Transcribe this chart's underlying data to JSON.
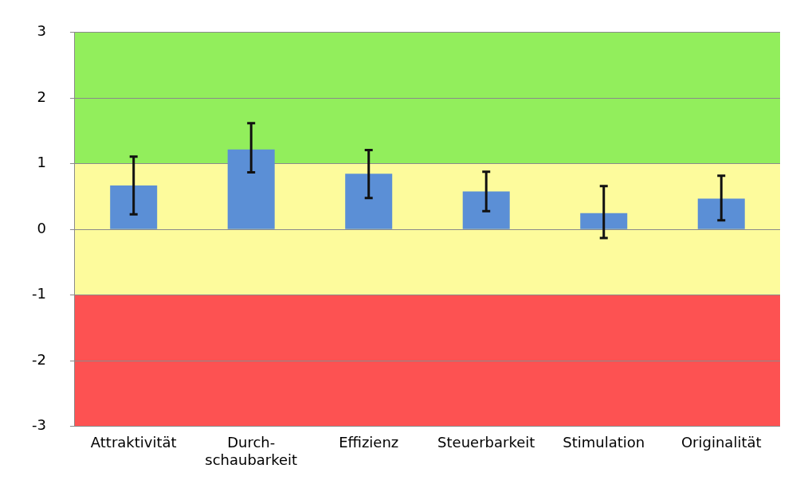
{
  "chart_data": {
    "type": "bar",
    "categories": [
      "Attraktivität",
      "Durch-\nschaubarkeit",
      "Effizienz",
      "Steuerbarkeit",
      "Stimulation",
      "Originalität"
    ],
    "values": [
      0.67,
      1.22,
      0.85,
      0.58,
      0.25,
      0.47
    ],
    "color": "#5b8fd6",
    "errors": [
      [
        0.23,
        1.11
      ],
      [
        0.87,
        1.62
      ],
      [
        0.48,
        1.21
      ],
      [
        0.28,
        0.88
      ],
      [
        -0.13,
        0.66
      ],
      [
        0.14,
        0.82
      ]
    ],
    "ylim": [
      -3,
      3
    ],
    "yticks": [
      -3,
      -2,
      -1,
      0,
      1,
      2,
      3
    ],
    "grid": "y",
    "legend": false,
    "bands": [
      {
        "axis": "y",
        "from": 1,
        "to": 3,
        "color": "#92ee5c"
      },
      {
        "axis": "y",
        "from": -1,
        "to": 1,
        "color": "#fdfb9c"
      },
      {
        "axis": "y",
        "from": -3,
        "to": -1,
        "color": "#fd5252"
      }
    ]
  }
}
